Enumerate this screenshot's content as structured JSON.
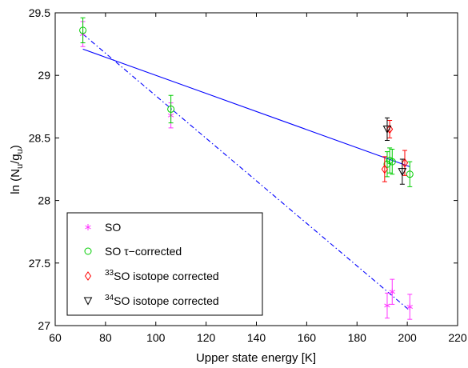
{
  "chart_data": {
    "type": "scatter",
    "xlabel": "Upper state energy [K]",
    "ylabel": "ln (N_u/g_u)",
    "xlim": [
      60,
      220
    ],
    "ylim": [
      27,
      29.5
    ],
    "xticks": [
      60,
      80,
      100,
      120,
      140,
      160,
      180,
      200,
      220
    ],
    "yticks": [
      27,
      27.5,
      28,
      28.5,
      29,
      29.5
    ],
    "xtick_labels": [
      "60",
      "80",
      "100",
      "120",
      "140",
      "160",
      "180",
      "200",
      "220"
    ],
    "ytick_labels": [
      "27",
      "27.5",
      "28",
      "28.5",
      "29",
      "29.5"
    ],
    "grid": false,
    "legend_position": "bottom-left",
    "series": [
      {
        "name": "SO",
        "marker": "asterisk",
        "color": "#ff33ff",
        "points": [
          {
            "x": 71,
            "y": 29.33,
            "err": 0.1
          },
          {
            "x": 106,
            "y": 28.68,
            "err": 0.1
          },
          {
            "x": 192,
            "y": 27.16,
            "err": 0.1
          },
          {
            "x": 194,
            "y": 27.27,
            "err": 0.1
          },
          {
            "x": 201,
            "y": 27.15,
            "err": 0.1
          }
        ]
      },
      {
        "name": "SO τ−corrected",
        "marker": "circle",
        "color": "#00cc00",
        "points": [
          {
            "x": 71,
            "y": 29.36,
            "err": 0.1
          },
          {
            "x": 106,
            "y": 28.73,
            "err": 0.11
          },
          {
            "x": 192,
            "y": 28.29,
            "err": 0.1
          },
          {
            "x": 193,
            "y": 28.32,
            "err": 0.1
          },
          {
            "x": 194,
            "y": 28.31,
            "err": 0.1
          },
          {
            "x": 201,
            "y": 28.21,
            "err": 0.1
          }
        ]
      },
      {
        "name": "33SO isotope corrected",
        "name_sup": "33",
        "name_rest": "SO isotope corrected",
        "marker": "diamond",
        "color": "#ff0000",
        "points": [
          {
            "x": 191,
            "y": 28.25,
            "err": 0.1
          },
          {
            "x": 193,
            "y": 28.57,
            "err": 0.07
          },
          {
            "x": 199,
            "y": 28.3,
            "err": 0.1
          }
        ]
      },
      {
        "name": "34SO isotope corrected",
        "name_sup": "34",
        "name_rest": "SO isotope corrected",
        "marker": "triangle-down",
        "color": "#000000",
        "points": [
          {
            "x": 192,
            "y": 28.57,
            "err": 0.09
          },
          {
            "x": 198,
            "y": 28.23,
            "err": 0.1
          }
        ]
      }
    ],
    "fits": [
      {
        "style": "solid",
        "color": "#0000ff",
        "x": [
          71,
          201
        ],
        "y": [
          29.21,
          28.27
        ]
      },
      {
        "style": "dashdot",
        "color": "#0000ff",
        "x": [
          71,
          201
        ],
        "y": [
          29.33,
          27.12
        ]
      }
    ]
  }
}
